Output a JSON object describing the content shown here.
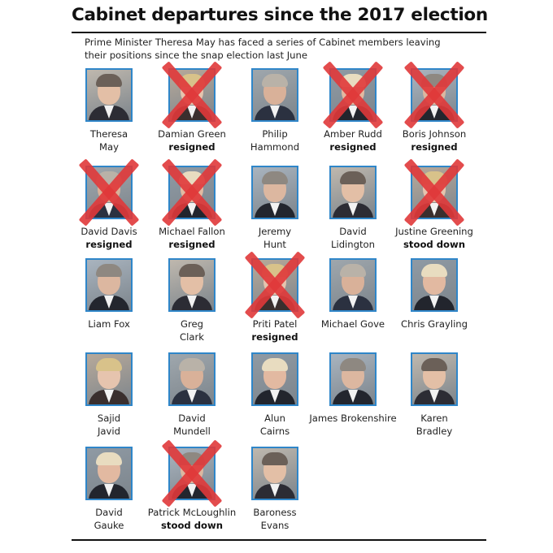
{
  "title": "Cabinet departures since the 2017 election",
  "subtitle_line1": "Prime Minister Theresa May has faced a series of Cabinet members leaving",
  "subtitle_line2": "their positions since the snap election last June",
  "members": [
    {
      "lines": [
        "Theresa",
        "May"
      ],
      "status": "",
      "crossed": false
    },
    {
      "lines": [
        "Damian Green"
      ],
      "status": "resigned",
      "crossed": true
    },
    {
      "lines": [
        "Philip",
        "Hammond"
      ],
      "status": "",
      "crossed": false
    },
    {
      "lines": [
        "Amber Rudd"
      ],
      "status": "resigned",
      "crossed": true
    },
    {
      "lines": [
        "Boris Johnson"
      ],
      "status": "resigned",
      "crossed": true
    },
    {
      "lines": [
        "David Davis"
      ],
      "status": "resigned",
      "crossed": true
    },
    {
      "lines": [
        "Michael Fallon"
      ],
      "status": "resigned",
      "crossed": true
    },
    {
      "lines": [
        "Jeremy",
        "Hunt"
      ],
      "status": "",
      "crossed": false
    },
    {
      "lines": [
        "David",
        "Lidington"
      ],
      "status": "",
      "crossed": false
    },
    {
      "lines": [
        "Justine Greening"
      ],
      "status": "stood down",
      "crossed": true
    },
    {
      "lines": [
        "Liam Fox"
      ],
      "status": "",
      "crossed": false
    },
    {
      "lines": [
        "Greg",
        "Clark"
      ],
      "status": "",
      "crossed": false
    },
    {
      "lines": [
        "Priti Patel"
      ],
      "status": "resigned",
      "crossed": true
    },
    {
      "lines": [
        "Michael Gove"
      ],
      "status": "",
      "crossed": false
    },
    {
      "lines": [
        "Chris Grayling"
      ],
      "status": "",
      "crossed": false
    },
    {
      "lines": [
        "Sajid",
        "Javid"
      ],
      "status": "",
      "crossed": false
    },
    {
      "lines": [
        "David",
        "Mundell"
      ],
      "status": "",
      "crossed": false
    },
    {
      "lines": [
        "Alun",
        "Cairns"
      ],
      "status": "",
      "crossed": false
    },
    {
      "lines": [
        "James Brokenshire"
      ],
      "status": "",
      "crossed": false
    },
    {
      "lines": [
        "Karen",
        "Bradley"
      ],
      "status": "",
      "crossed": false
    },
    {
      "lines": [
        "David",
        "Gauke"
      ],
      "status": "",
      "crossed": false
    },
    {
      "lines": [
        "Patrick McLoughlin"
      ],
      "status": "stood down",
      "crossed": true
    },
    {
      "lines": [
        "Baroness",
        "Evans"
      ],
      "status": "",
      "crossed": false
    }
  ]
}
